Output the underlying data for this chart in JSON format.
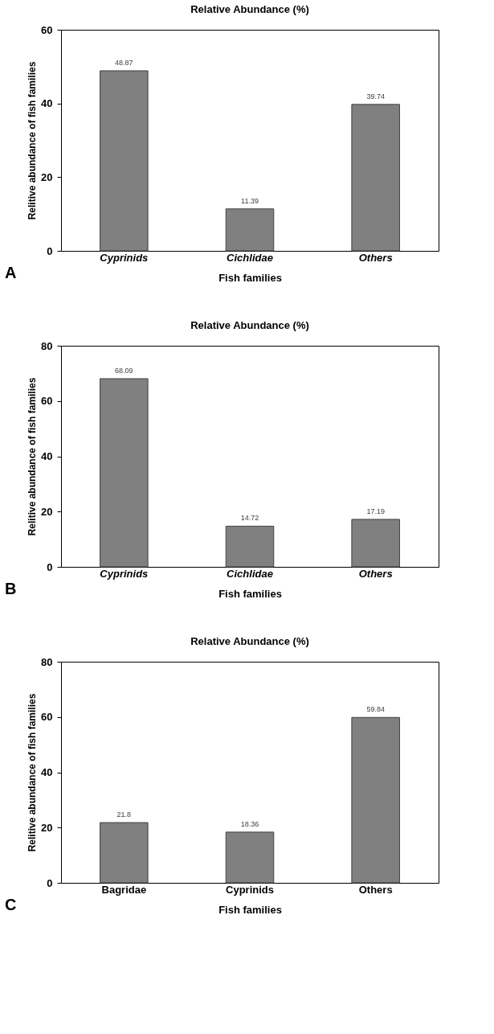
{
  "chart_data": [
    {
      "type": "bar",
      "title": "Relative Abundance (%)",
      "xlabel": "Fish families",
      "ylabel": "Relitive abundance of fish families",
      "categories": [
        "Cyprinids",
        "Cichlidae",
        "Others"
      ],
      "values": [
        48.87,
        11.39,
        39.74
      ],
      "color": "#808080",
      "ylim": [
        0,
        60
      ],
      "yticks": [
        0,
        20,
        40,
        60
      ],
      "data_labels": true,
      "grid": false,
      "annotations": [
        "A"
      ]
    },
    {
      "type": "bar",
      "title": "Relative Abundance (%)",
      "xlabel": "Fish families",
      "ylabel": "Relitive abundance of fish families",
      "categories": [
        "Cyprinids",
        "Cichlidae",
        "Others"
      ],
      "values": [
        68.09,
        14.72,
        17.19
      ],
      "color": "#808080",
      "ylim": [
        0,
        80
      ],
      "yticks": [
        0,
        20,
        40,
        60,
        80
      ],
      "data_labels": true,
      "grid": false,
      "annotations": [
        "B"
      ]
    },
    {
      "type": "bar",
      "title": "Relative Abundance (%)",
      "xlabel": "Fish families",
      "ylabel": "Relitive abundance of fish families",
      "categories": [
        "Bagridae",
        "Cyprinids",
        "Others"
      ],
      "values": [
        21.8,
        18.36,
        59.84
      ],
      "color": "#808080",
      "ylim": [
        0,
        80
      ],
      "yticks": [
        0,
        20,
        40,
        60,
        80
      ],
      "data_labels": true,
      "grid": false,
      "annotations": [
        "C"
      ]
    }
  ]
}
